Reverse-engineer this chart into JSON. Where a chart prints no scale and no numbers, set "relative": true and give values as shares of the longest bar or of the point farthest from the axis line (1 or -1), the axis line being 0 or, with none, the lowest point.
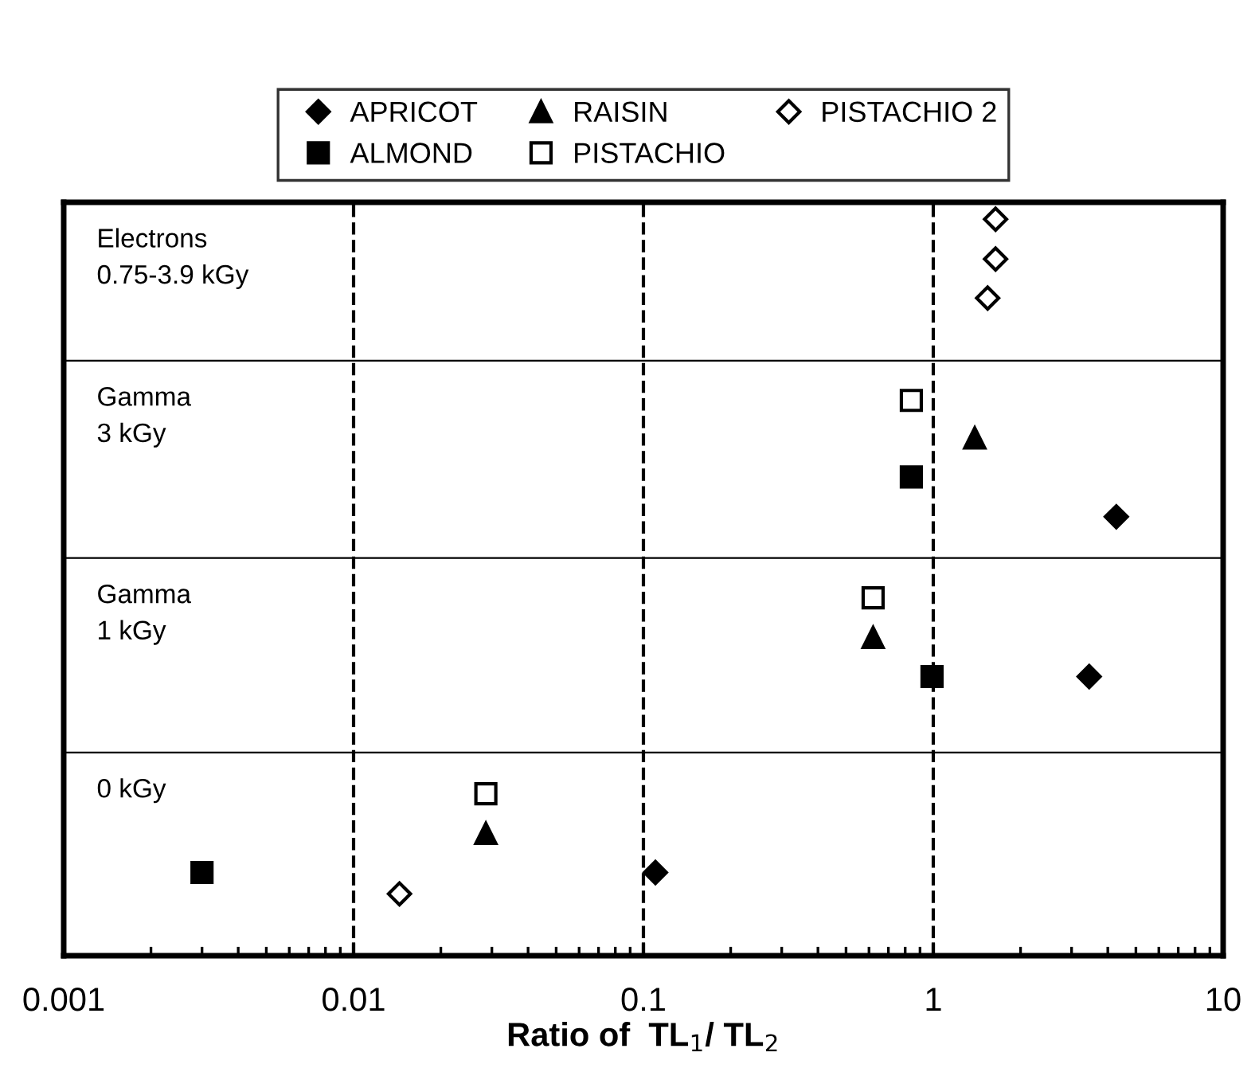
{
  "chart_data": {
    "type": "scatter",
    "xlabel": "Ratio of  TL$_{1}$/ TL$_{2}$",
    "log": "x",
    "xlim": [
      0.001,
      10
    ],
    "xticks": [
      0.001,
      0.01,
      0.1,
      1,
      10
    ],
    "relative": true,
    "tick_labels": "x",
    "grid": false,
    "legend": "top",
    "series": [
      {
        "name": "APRICOT",
        "color": "#000000",
        "marker": "diamond",
        "x": [
          0.11,
          3.45,
          4.28
        ],
        "values": [
          0.113,
          0.379,
          0.596
        ]
      },
      {
        "name": "ALMOND",
        "color": "#000000",
        "marker": "square",
        "x": [
          0.003,
          0.99,
          0.84
        ],
        "values": [
          0.113,
          0.379,
          0.65
        ]
      },
      {
        "name": "RAISIN",
        "color": "#000000",
        "marker": "triangle",
        "x": [
          0.0286,
          0.62,
          1.39
        ],
        "values": [
          0.166,
          0.432,
          0.703
        ]
      },
      {
        "name": "PISTACHIO",
        "color": "#ffffff",
        "marker": "square",
        "x": [
          0.0286,
          0.62,
          0.84
        ],
        "values": [
          0.22,
          0.486,
          0.754
        ]
      },
      {
        "name": "PISTACHIO 2",
        "color": "#ffffff",
        "marker": "diamond",
        "x": [
          0.0144,
          1.54,
          1.64,
          1.64
        ],
        "values": [
          0.084,
          0.893,
          0.946,
          1
        ]
      }
    ],
    "ref_lines": [
      {
        "axis": "x",
        "value": 0.01,
        "line_style": "dashed"
      },
      {
        "axis": "x",
        "value": 0.1,
        "line_style": "dashed"
      },
      {
        "axis": "x",
        "value": 1,
        "line_style": "dashed"
      },
      {
        "axis": "y",
        "value": 0.276,
        "line_style": "solid"
      },
      {
        "axis": "y",
        "value": 0.54,
        "line_style": "solid"
      },
      {
        "axis": "y",
        "value": 0.808,
        "line_style": "solid"
      }
    ],
    "annotations": [
      "Electrons\n0.75-3.9 kGy",
      "Gamma\n3 kGy",
      "Gamma\n1 kGy",
      "0 kGy"
    ]
  }
}
